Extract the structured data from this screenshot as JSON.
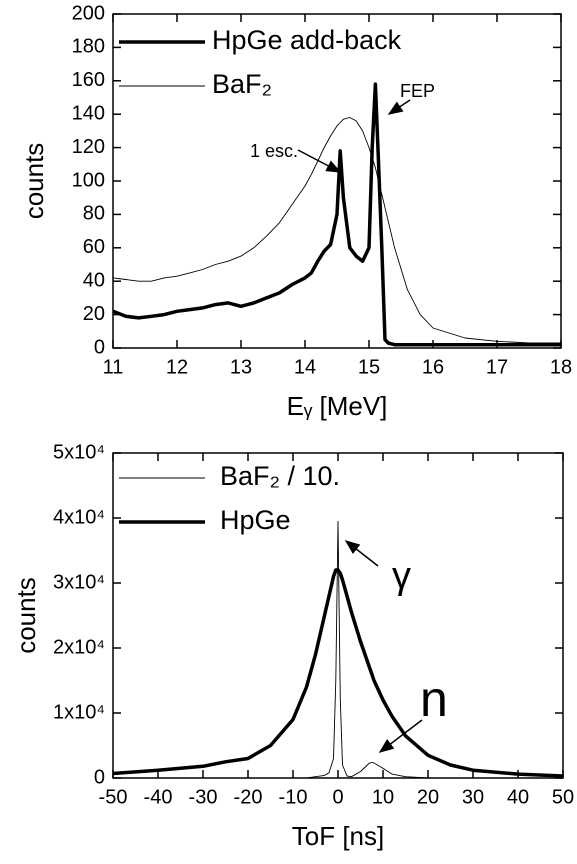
{
  "chart_data": [
    {
      "type": "line",
      "x": [
        11.0,
        11.2,
        11.4,
        11.6,
        11.8,
        12.0,
        12.2,
        12.4,
        12.6,
        12.8,
        13.0,
        13.2,
        13.4,
        13.6,
        13.8,
        14.0,
        14.1,
        14.2,
        14.3,
        14.4,
        14.5,
        14.55,
        14.6,
        14.7,
        14.8,
        14.9,
        15.0,
        15.05,
        15.1,
        15.15,
        15.2,
        15.25,
        15.3,
        15.4,
        15.6,
        15.8,
        16.0,
        16.5,
        17.0,
        17.5,
        18.0
      ],
      "series": [
        {
          "name": "HpGe  add-back",
          "color": "#000000",
          "values": [
            22,
            19,
            18,
            19,
            20,
            22,
            23,
            24,
            26,
            27,
            25,
            27,
            30,
            33,
            38,
            42,
            45,
            52,
            58,
            62,
            80,
            118,
            90,
            60,
            55,
            52,
            60,
            120,
            158,
            110,
            60,
            5,
            3,
            2,
            2,
            2,
            2,
            2,
            2,
            2,
            2
          ]
        },
        {
          "name": "BaF₂",
          "color": "#000000",
          "values": [
            42,
            41,
            40,
            40,
            42,
            43,
            45,
            47,
            50,
            52,
            55,
            60,
            67,
            75,
            86,
            97,
            104,
            112,
            120,
            127,
            133,
            135,
            137,
            138,
            136,
            130,
            120,
            114,
            108,
            100,
            92,
            84,
            76,
            60,
            35,
            20,
            12,
            6,
            4,
            3,
            3
          ]
        }
      ],
      "xlabel": "Eᵧ [MeV]",
      "ylabel": "counts",
      "xlim": [
        11,
        18
      ],
      "xticks": [
        11,
        12,
        13,
        14,
        15,
        16,
        17,
        18
      ],
      "ylim": [
        0,
        200
      ],
      "yticks": [
        0,
        20,
        40,
        60,
        80,
        100,
        120,
        140,
        160,
        180,
        200
      ],
      "legend": "upper left",
      "annotations": [
        "1 esc.",
        "FEP"
      ]
    },
    {
      "type": "line",
      "x": [
        -50,
        -40,
        -30,
        -25,
        -20,
        -15,
        -10,
        -7,
        -5,
        -3,
        -2,
        -1,
        -0.5,
        0,
        0.5,
        1,
        2,
        3,
        5,
        7,
        7.5,
        8,
        10,
        12,
        15,
        20,
        25,
        30,
        40,
        50
      ],
      "series": [
        {
          "name": "BaF₂ / 10.",
          "color": "#000000",
          "values": [
            0,
            0,
            0,
            0,
            0,
            0,
            0,
            0,
            200,
            400,
            800,
            3000,
            15000,
            39500,
            12000,
            2000,
            300,
            200,
            1000,
            2300,
            2400,
            2300,
            1500,
            600,
            200,
            0,
            0,
            0,
            0,
            0
          ]
        },
        {
          "name": "HpGe",
          "color": "#000000",
          "values": [
            700,
            1200,
            1800,
            2500,
            3000,
            5000,
            9000,
            14000,
            19000,
            25000,
            28000,
            31000,
            32000,
            32000,
            31500,
            30500,
            28000,
            25500,
            21000,
            17000,
            16000,
            15000,
            12000,
            9500,
            6500,
            3500,
            2000,
            1200,
            600,
            300
          ]
        }
      ],
      "xlabel": "ToF [ns]",
      "ylabel": "counts",
      "xlim": [
        -50,
        50
      ],
      "xticks": [
        -50,
        -40,
        -30,
        -20,
        -10,
        0,
        10,
        20,
        30,
        40,
        50
      ],
      "ylim": [
        0,
        50000
      ],
      "yticks": [
        0,
        {
          "value": 10000,
          "label": "1x10⁴"
        },
        {
          "value": 20000,
          "label": "2x10⁴"
        },
        {
          "value": 30000,
          "label": "3x10⁴"
        },
        {
          "value": 40000,
          "label": "4x10⁴"
        },
        {
          "value": 50000,
          "label": "5x10⁴"
        }
      ],
      "legend": "upper left",
      "annotations": [
        "γ",
        "n"
      ]
    }
  ]
}
